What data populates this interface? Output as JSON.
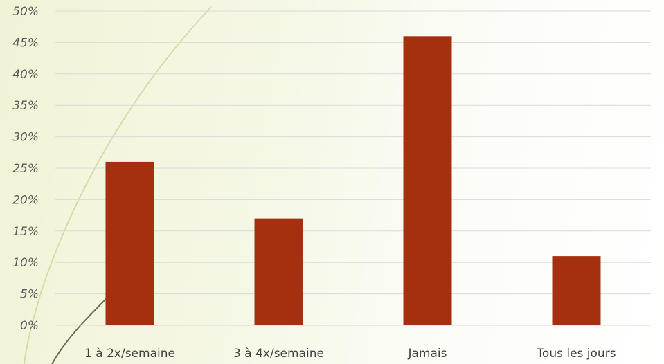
{
  "chart_data": {
    "type": "bar",
    "categories": [
      "1 à 2x/semaine",
      "3 à 4x/semaine",
      "Jamais",
      "Tous les jours"
    ],
    "values": [
      26,
      17,
      46,
      11
    ],
    "ylim": [
      0,
      50
    ],
    "y_ticks": [
      0,
      5,
      10,
      15,
      20,
      25,
      30,
      35,
      40,
      45,
      50
    ],
    "y_tick_format": "percent",
    "grid": true,
    "legend": "none",
    "bar_color": "#a5300f",
    "title": "",
    "xlabel": "",
    "ylabel": ""
  }
}
